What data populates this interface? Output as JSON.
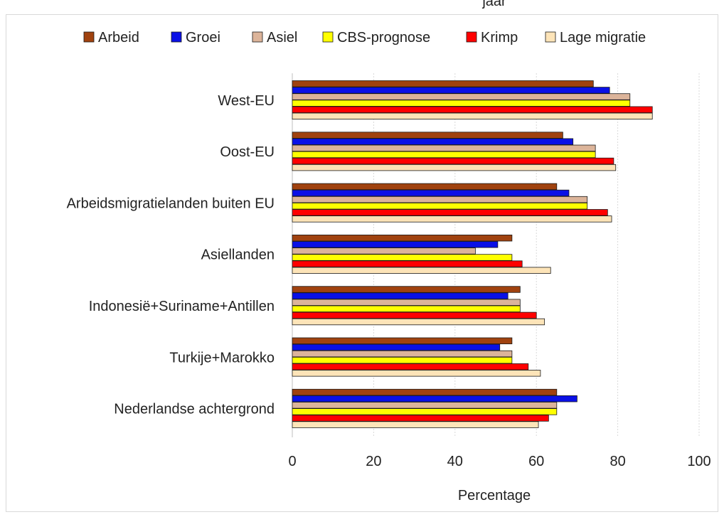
{
  "header": {
    "top_text": "jaar"
  },
  "chart_data": {
    "type": "bar",
    "orientation": "horizontal",
    "title": "",
    "xlabel": "Percentage",
    "ylabel": "",
    "xlim": [
      0,
      100
    ],
    "xticks": [
      0,
      20,
      40,
      60,
      80,
      100
    ],
    "grid": true,
    "legend_position": "top",
    "categories": [
      "West-EU",
      "Oost-EU",
      "Arbeidsmigratielanden buiten EU",
      "Asiellanden",
      "Indonesië+Suriname+Antillen",
      "Turkije+Marokko",
      "Nederlandse achtergrond"
    ],
    "series": [
      {
        "name": "Arbeid",
        "color": "#a0420f",
        "values": [
          74,
          66.5,
          65,
          54,
          56,
          54,
          65
        ]
      },
      {
        "name": "Groei",
        "color": "#0a10e6",
        "values": [
          78,
          69,
          68,
          50.5,
          53,
          51,
          70
        ]
      },
      {
        "name": "Asiel",
        "color": "#dcb49a",
        "values": [
          83,
          74.5,
          72.5,
          45,
          56,
          54,
          65
        ]
      },
      {
        "name": "CBS-prognose",
        "color": "#ffff00",
        "values": [
          83,
          74.5,
          72.5,
          54,
          56,
          54,
          65
        ]
      },
      {
        "name": "Krimp",
        "color": "#ff0000",
        "values": [
          88.5,
          79,
          77.5,
          56.5,
          60,
          58,
          63
        ]
      },
      {
        "name": "Lage migratie",
        "color": "#fde4b8",
        "values": [
          88.5,
          79.5,
          78.5,
          63.5,
          62,
          61,
          60.5
        ]
      }
    ]
  }
}
